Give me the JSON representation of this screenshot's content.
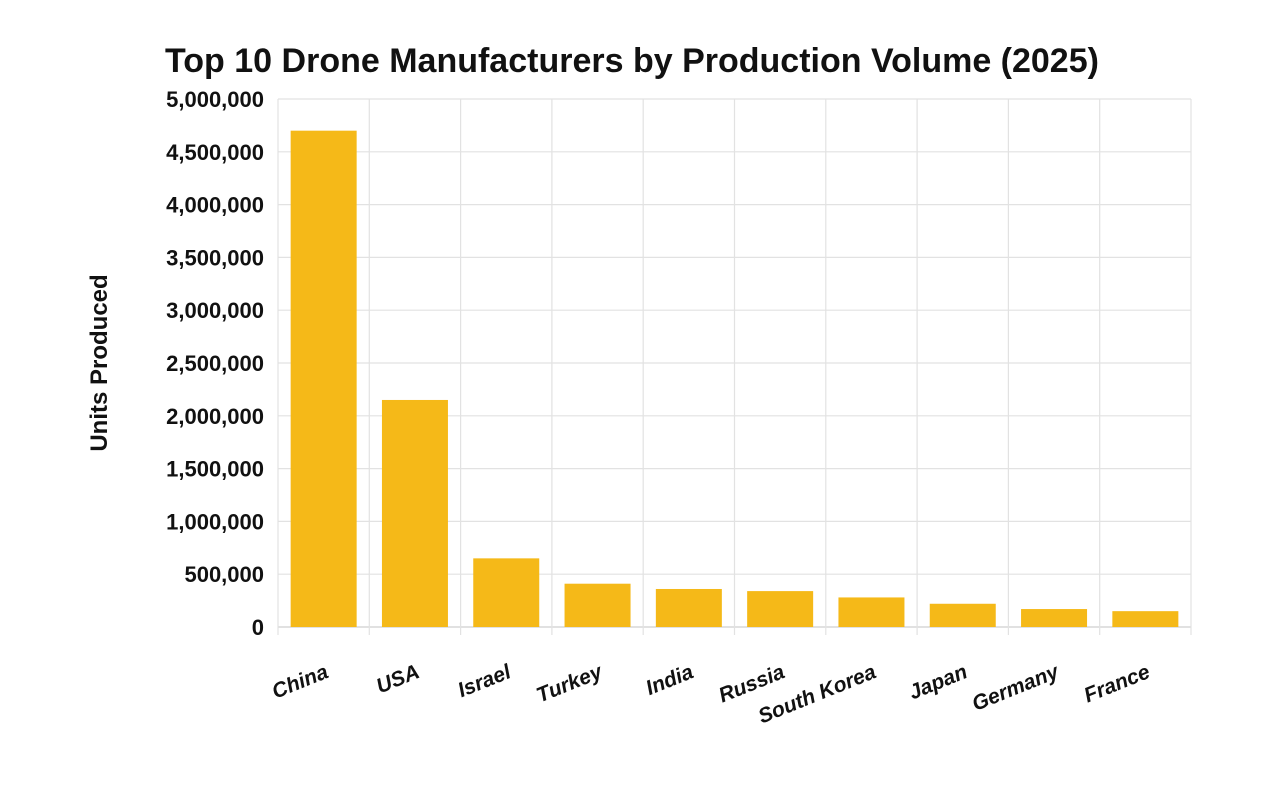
{
  "chart_data": {
    "type": "bar",
    "title": "Top 10 Drone Manufacturers by Production Volume (2025)",
    "xlabel": "",
    "ylabel": "Units Produced",
    "categories": [
      "China",
      "USA",
      "Israel",
      "Turkey",
      "India",
      "Russia",
      "South Korea",
      "Japan",
      "Germany",
      "France"
    ],
    "values": [
      4700000,
      2150000,
      650000,
      410000,
      360000,
      340000,
      280000,
      220000,
      170000,
      150000
    ],
    "ylim": [
      0,
      5000000
    ],
    "yticks": [
      0,
      500000,
      1000000,
      1500000,
      2000000,
      2500000,
      3000000,
      3500000,
      4000000,
      4500000,
      5000000
    ],
    "ytick_labels": [
      "0",
      "500,000",
      "1,000,000",
      "1,500,000",
      "2,000,000",
      "2,500,000",
      "3,000,000",
      "3,500,000",
      "4,000,000",
      "4,500,000",
      "5,000,000"
    ],
    "grid": true,
    "bar_color": "#F5B918"
  }
}
